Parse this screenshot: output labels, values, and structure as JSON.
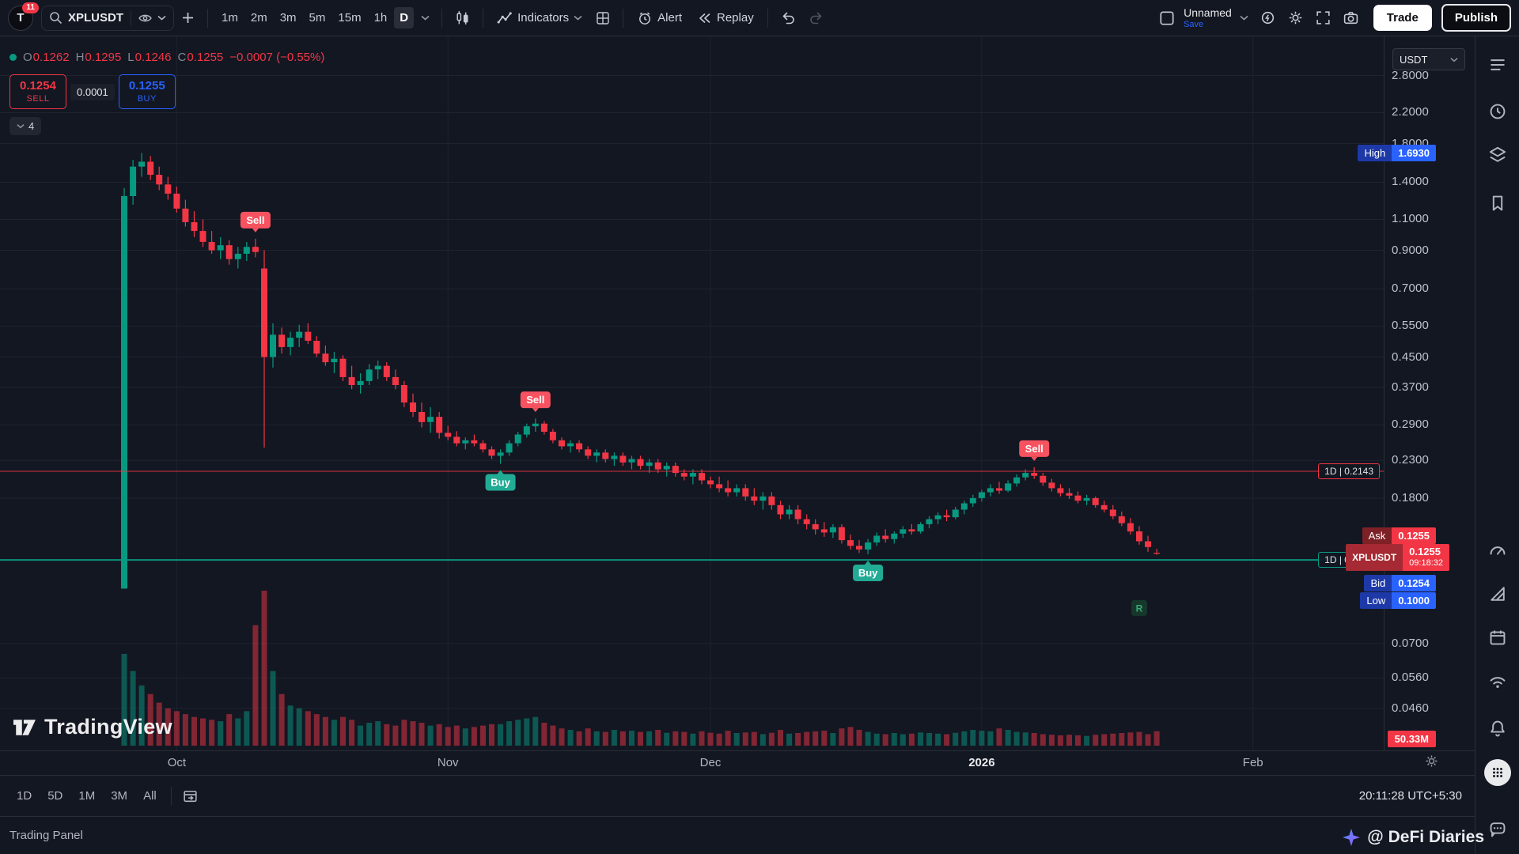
{
  "topbar": {
    "avatar_initial": "T",
    "notifications_badge": "11",
    "symbol_search": "XPLUSDT",
    "intervals": [
      "1m",
      "2m",
      "3m",
      "5m",
      "15m",
      "1h",
      "D"
    ],
    "active_interval": "D",
    "indicators": "Indicators",
    "alert": "Alert",
    "replay": "Replay",
    "layout_name": "Unnamed",
    "save": "Save",
    "trade": "Trade",
    "publish": "Publish"
  },
  "legend": {
    "open_label": "O",
    "open": "0.1262",
    "high_label": "H",
    "high": "0.1295",
    "low_label": "L",
    "low": "0.1246",
    "close_label": "C",
    "close": "0.1255",
    "change": "−0.0007 (−0.55%)"
  },
  "order_panel": {
    "sell_price": "0.1254",
    "sell_text": "SELL",
    "spread": "0.0001",
    "buy_price": "0.1255",
    "buy_text": "BUY"
  },
  "drawings_badge": "4",
  "price_axis": {
    "currency_button": "USDT",
    "ticks": [
      "2.8000",
      "2.2000",
      "1.8000",
      "1.4000",
      "1.1000",
      "0.9000",
      "0.7000",
      "0.5500",
      "0.4500",
      "0.3700",
      "0.2900",
      "0.2300",
      "0.1800",
      "0.0700",
      "0.0560",
      "0.0460"
    ],
    "high_tag": {
      "name": "High",
      "value": "1.6930"
    },
    "ask_tag": {
      "name": "Ask",
      "value": "0.1255"
    },
    "symbol_tag": {
      "name": "XPLUSDT",
      "value": "0.1255",
      "countdown": "09:18:32"
    },
    "bid_tag": {
      "name": "Bid",
      "value": "0.1254"
    },
    "low_tag": {
      "name": "Low",
      "value": "0.1000"
    },
    "volume_tag": "50.33M"
  },
  "time_axis": {
    "labels": [
      {
        "text": "Oct",
        "index": 6
      },
      {
        "text": "Nov",
        "index": 37
      },
      {
        "text": "Dec",
        "index": 67
      },
      {
        "text": "2026",
        "index": 98
      },
      {
        "text": "Feb",
        "index": 129
      }
    ]
  },
  "bottom_bar": {
    "ranges": [
      "1D",
      "5D",
      "1M",
      "3M",
      "All"
    ],
    "time": "20:11:28",
    "timezone": "UTC+5:30"
  },
  "status_bar": {
    "left": "Trading Panel"
  },
  "watermarks": {
    "chart_logo": "TradingView",
    "overlay": "@ DeFi Diaries"
  },
  "colors": {
    "up": "#089981",
    "down": "#f23645",
    "buy_blue": "#2962ff",
    "sell_red": "#f7525f",
    "bg": "#131722"
  },
  "sidebar_icons": [
    "watchlist",
    "alerts-clock",
    "object-tree",
    "bookmark",
    "gauge",
    "triangle-ruler",
    "calendar",
    "streams",
    "notifications-bell",
    "apps-grid",
    "help-chat"
  ],
  "chart_data": {
    "type": "candlestick",
    "symbol": "XPLUSDT",
    "interval": "1D",
    "price_scale": "log",
    "visible_high": 1.693,
    "visible_low": 0.1,
    "x_labels": [
      "Oct",
      "Nov",
      "Dec",
      "2026",
      "Feb"
    ],
    "y_ticks": [
      2.8,
      2.2,
      1.8,
      1.4,
      1.1,
      0.9,
      0.7,
      0.55,
      0.45,
      0.37,
      0.29,
      0.23,
      0.18,
      0.07,
      0.056,
      0.046
    ],
    "price_lines": [
      {
        "label": "1D | 0.2143",
        "price": 0.2143,
        "color": "#f23645"
      },
      {
        "label": "1D | 0.1205",
        "price": 0.1205,
        "color": "#089981"
      }
    ],
    "markers": [
      {
        "index": 15,
        "type": "sell",
        "label": "Sell"
      },
      {
        "index": 43,
        "type": "buy",
        "label": "Buy"
      },
      {
        "index": 47,
        "type": "sell",
        "label": "Sell"
      },
      {
        "index": 85,
        "type": "buy",
        "label": "Buy"
      },
      {
        "index": 104,
        "type": "sell",
        "label": "Sell"
      },
      {
        "index": 116,
        "type": "label",
        "label": "R"
      }
    ],
    "volume_max_millions": 540,
    "candles": [
      [
        0.1,
        1.35,
        0.1,
        1.28,
        320
      ],
      [
        1.28,
        1.62,
        1.21,
        1.55,
        260
      ],
      [
        1.55,
        1.693,
        1.45,
        1.6,
        210
      ],
      [
        1.6,
        1.66,
        1.42,
        1.47,
        180
      ],
      [
        1.47,
        1.55,
        1.33,
        1.38,
        150
      ],
      [
        1.38,
        1.45,
        1.25,
        1.3,
        130
      ],
      [
        1.3,
        1.36,
        1.15,
        1.18,
        120
      ],
      [
        1.18,
        1.25,
        1.05,
        1.08,
        110
      ],
      [
        1.08,
        1.16,
        0.98,
        1.02,
        100
      ],
      [
        1.02,
        1.1,
        0.92,
        0.95,
        95
      ],
      [
        0.95,
        1.02,
        0.88,
        0.9,
        90
      ],
      [
        0.9,
        0.98,
        0.85,
        0.93,
        85
      ],
      [
        0.93,
        0.96,
        0.82,
        0.85,
        110
      ],
      [
        0.85,
        0.92,
        0.8,
        0.88,
        95
      ],
      [
        0.88,
        0.95,
        0.84,
        0.92,
        120
      ],
      [
        0.92,
        0.97,
        0.86,
        0.89,
        420
      ],
      [
        0.8,
        0.9,
        0.25,
        0.45,
        540
      ],
      [
        0.45,
        0.56,
        0.42,
        0.52,
        260
      ],
      [
        0.52,
        0.545,
        0.46,
        0.48,
        180
      ],
      [
        0.48,
        0.53,
        0.455,
        0.51,
        140
      ],
      [
        0.51,
        0.555,
        0.48,
        0.53,
        130
      ],
      [
        0.53,
        0.56,
        0.49,
        0.5,
        120
      ],
      [
        0.5,
        0.515,
        0.45,
        0.46,
        110
      ],
      [
        0.46,
        0.485,
        0.425,
        0.435,
        100
      ],
      [
        0.435,
        0.465,
        0.405,
        0.445,
        90
      ],
      [
        0.445,
        0.455,
        0.385,
        0.395,
        100
      ],
      [
        0.395,
        0.425,
        0.365,
        0.375,
        90
      ],
      [
        0.375,
        0.405,
        0.355,
        0.385,
        70
      ],
      [
        0.385,
        0.43,
        0.375,
        0.415,
        80
      ],
      [
        0.415,
        0.44,
        0.39,
        0.425,
        85
      ],
      [
        0.425,
        0.435,
        0.385,
        0.395,
        75
      ],
      [
        0.395,
        0.415,
        0.365,
        0.375,
        70
      ],
      [
        0.375,
        0.385,
        0.325,
        0.335,
        90
      ],
      [
        0.335,
        0.355,
        0.305,
        0.315,
        85
      ],
      [
        0.315,
        0.335,
        0.285,
        0.295,
        80
      ],
      [
        0.295,
        0.325,
        0.275,
        0.305,
        70
      ],
      [
        0.305,
        0.315,
        0.265,
        0.275,
        75
      ],
      [
        0.275,
        0.288,
        0.262,
        0.268,
        65
      ],
      [
        0.268,
        0.278,
        0.252,
        0.257,
        70
      ],
      [
        0.257,
        0.267,
        0.247,
        0.262,
        60
      ],
      [
        0.262,
        0.272,
        0.252,
        0.257,
        65
      ],
      [
        0.257,
        0.262,
        0.242,
        0.247,
        70
      ],
      [
        0.247,
        0.252,
        0.232,
        0.237,
        75
      ],
      [
        0.237,
        0.247,
        0.225,
        0.242,
        75
      ],
      [
        0.242,
        0.262,
        0.237,
        0.257,
        85
      ],
      [
        0.257,
        0.277,
        0.252,
        0.272,
        90
      ],
      [
        0.272,
        0.292,
        0.267,
        0.287,
        95
      ],
      [
        0.287,
        0.302,
        0.277,
        0.292,
        100
      ],
      [
        0.292,
        0.297,
        0.272,
        0.277,
        80
      ],
      [
        0.277,
        0.282,
        0.257,
        0.262,
        70
      ],
      [
        0.262,
        0.267,
        0.247,
        0.252,
        60
      ],
      [
        0.252,
        0.262,
        0.242,
        0.257,
        55
      ],
      [
        0.257,
        0.262,
        0.242,
        0.247,
        50
      ],
      [
        0.247,
        0.252,
        0.232,
        0.237,
        60
      ],
      [
        0.237,
        0.247,
        0.227,
        0.242,
        50
      ],
      [
        0.242,
        0.247,
        0.227,
        0.232,
        48
      ],
      [
        0.232,
        0.242,
        0.222,
        0.237,
        55
      ],
      [
        0.237,
        0.242,
        0.222,
        0.227,
        50
      ],
      [
        0.227,
        0.237,
        0.217,
        0.232,
        52
      ],
      [
        0.232,
        0.237,
        0.217,
        0.222,
        48
      ],
      [
        0.222,
        0.232,
        0.212,
        0.227,
        50
      ],
      [
        0.227,
        0.232,
        0.212,
        0.217,
        55
      ],
      [
        0.217,
        0.227,
        0.207,
        0.222,
        45
      ],
      [
        0.222,
        0.227,
        0.207,
        0.212,
        50
      ],
      [
        0.212,
        0.217,
        0.202,
        0.207,
        48
      ],
      [
        0.207,
        0.217,
        0.197,
        0.212,
        42
      ],
      [
        0.212,
        0.217,
        0.197,
        0.202,
        50
      ],
      [
        0.202,
        0.207,
        0.192,
        0.197,
        45
      ],
      [
        0.197,
        0.207,
        0.187,
        0.192,
        42
      ],
      [
        0.192,
        0.202,
        0.182,
        0.187,
        52
      ],
      [
        0.187,
        0.197,
        0.182,
        0.192,
        44
      ],
      [
        0.192,
        0.197,
        0.177,
        0.182,
        46
      ],
      [
        0.182,
        0.192,
        0.172,
        0.177,
        48
      ],
      [
        0.177,
        0.187,
        0.167,
        0.182,
        40
      ],
      [
        0.182,
        0.187,
        0.167,
        0.172,
        45
      ],
      [
        0.172,
        0.177,
        0.157,
        0.162,
        55
      ],
      [
        0.162,
        0.172,
        0.157,
        0.167,
        42
      ],
      [
        0.167,
        0.172,
        0.152,
        0.157,
        44
      ],
      [
        0.157,
        0.162,
        0.147,
        0.152,
        48
      ],
      [
        0.152,
        0.157,
        0.142,
        0.147,
        50
      ],
      [
        0.147,
        0.154,
        0.14,
        0.144,
        52
      ],
      [
        0.144,
        0.152,
        0.139,
        0.149,
        44
      ],
      [
        0.149,
        0.152,
        0.134,
        0.137,
        60
      ],
      [
        0.137,
        0.142,
        0.129,
        0.132,
        65
      ],
      [
        0.132,
        0.137,
        0.126,
        0.129,
        55
      ],
      [
        0.129,
        0.138,
        0.125,
        0.135,
        48
      ],
      [
        0.135,
        0.144,
        0.132,
        0.141,
        42
      ],
      [
        0.141,
        0.147,
        0.135,
        0.138,
        40
      ],
      [
        0.138,
        0.145,
        0.134,
        0.143,
        44
      ],
      [
        0.143,
        0.15,
        0.139,
        0.147,
        40
      ],
      [
        0.147,
        0.152,
        0.142,
        0.145,
        42
      ],
      [
        0.145,
        0.154,
        0.143,
        0.152,
        46
      ],
      [
        0.152,
        0.16,
        0.148,
        0.157,
        44
      ],
      [
        0.157,
        0.164,
        0.152,
        0.161,
        42
      ],
      [
        0.161,
        0.167,
        0.155,
        0.159,
        40
      ],
      [
        0.159,
        0.17,
        0.157,
        0.167,
        45
      ],
      [
        0.167,
        0.177,
        0.162,
        0.174,
        50
      ],
      [
        0.174,
        0.184,
        0.17,
        0.18,
        55
      ],
      [
        0.18,
        0.19,
        0.176,
        0.187,
        52
      ],
      [
        0.187,
        0.197,
        0.182,
        0.192,
        50
      ],
      [
        0.192,
        0.2,
        0.185,
        0.189,
        60
      ],
      [
        0.189,
        0.202,
        0.187,
        0.198,
        55
      ],
      [
        0.198,
        0.21,
        0.194,
        0.206,
        48
      ],
      [
        0.206,
        0.217,
        0.202,
        0.212,
        46
      ],
      [
        0.212,
        0.22,
        0.204,
        0.208,
        44
      ],
      [
        0.208,
        0.212,
        0.195,
        0.199,
        40
      ],
      [
        0.199,
        0.204,
        0.188,
        0.192,
        38
      ],
      [
        0.192,
        0.197,
        0.182,
        0.186,
        36
      ],
      [
        0.186,
        0.192,
        0.179,
        0.183,
        38
      ],
      [
        0.183,
        0.188,
        0.174,
        0.177,
        36
      ],
      [
        0.177,
        0.184,
        0.172,
        0.18,
        34
      ],
      [
        0.18,
        0.182,
        0.169,
        0.172,
        38
      ],
      [
        0.172,
        0.177,
        0.164,
        0.167,
        40
      ],
      [
        0.167,
        0.172,
        0.157,
        0.16,
        42
      ],
      [
        0.16,
        0.165,
        0.15,
        0.153,
        44
      ],
      [
        0.153,
        0.158,
        0.142,
        0.145,
        46
      ],
      [
        0.145,
        0.15,
        0.133,
        0.136,
        48
      ],
      [
        0.136,
        0.141,
        0.127,
        0.131,
        40
      ],
      [
        0.1262,
        0.1295,
        0.1246,
        0.1255,
        50.33
      ]
    ]
  }
}
